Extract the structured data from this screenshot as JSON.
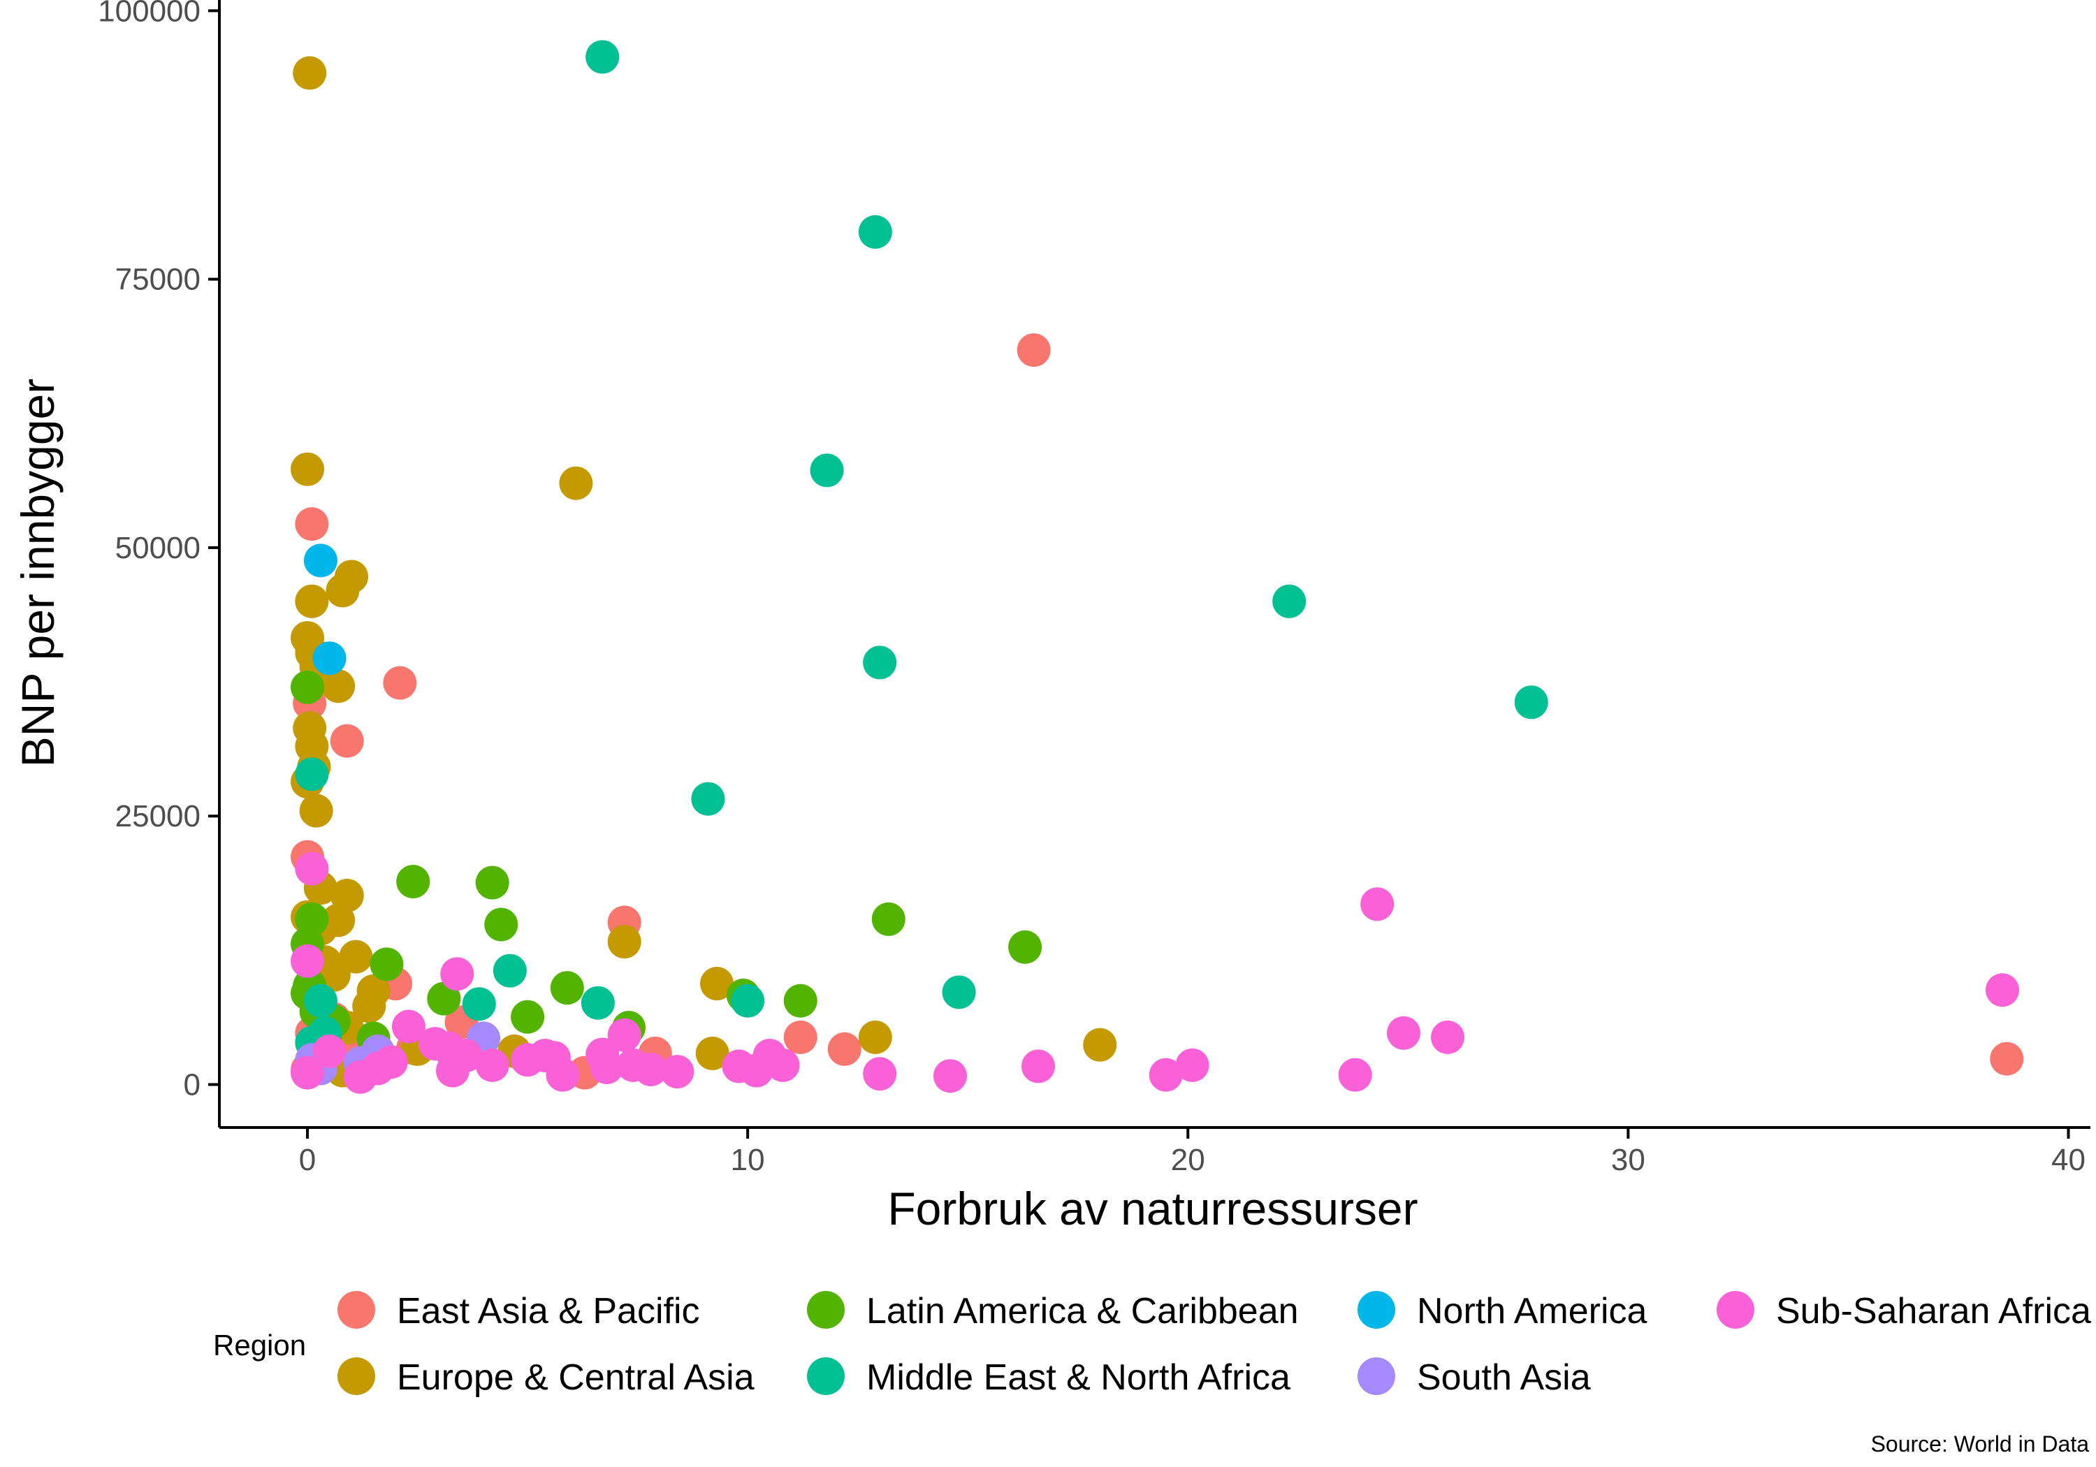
{
  "chart_data": {
    "type": "scatter",
    "xlabel": "Forbruk av naturressurser",
    "ylabel": "BNP per innbygger",
    "xlim": [
      -2,
      40.5
    ],
    "ylim": [
      -4000,
      101000
    ],
    "x_ticks": [
      0,
      10,
      20,
      30,
      40
    ],
    "y_ticks": [
      0,
      25000,
      50000,
      75000,
      100000
    ],
    "grid": false,
    "legend_title": "Region",
    "legend_position": "bottom",
    "caption": "Source: World in Data",
    "series": [
      {
        "name": "East Asia & Pacific",
        "color": "#F8766D",
        "points": [
          [
            16.5,
            68400
          ],
          [
            0.1,
            52200
          ],
          [
            2.1,
            37400
          ],
          [
            0.9,
            32000
          ],
          [
            0.05,
            35500
          ],
          [
            0.0,
            21200
          ],
          [
            7.2,
            15100
          ],
          [
            2.0,
            9400
          ],
          [
            3.5,
            5800
          ],
          [
            11.2,
            4400
          ],
          [
            12.2,
            3300
          ],
          [
            7.9,
            2900
          ],
          [
            6.3,
            1100
          ],
          [
            38.6,
            2400
          ],
          [
            0.5,
            3500
          ],
          [
            0.8,
            2200
          ],
          [
            1.0,
            4200
          ],
          [
            0.1,
            4800
          ],
          [
            0.3,
            2400
          ],
          [
            0.0,
            1400
          ],
          [
            1.5,
            2800
          ],
          [
            2.4,
            3400
          ],
          [
            0.6,
            6100
          ],
          [
            1.6,
            1800
          ]
        ]
      },
      {
        "name": "Europe & Central Asia",
        "color": "#C49A00",
        "points": [
          [
            0.05,
            94200
          ],
          [
            0.0,
            57300
          ],
          [
            6.1,
            56000
          ],
          [
            1.0,
            47300
          ],
          [
            0.8,
            46000
          ],
          [
            0.1,
            45000
          ],
          [
            0.0,
            41600
          ],
          [
            0.1,
            40200
          ],
          [
            0.2,
            38900
          ],
          [
            0.7,
            37100
          ],
          [
            0.05,
            33200
          ],
          [
            0.1,
            31500
          ],
          [
            0.15,
            29600
          ],
          [
            0.0,
            28200
          ],
          [
            0.2,
            25500
          ],
          [
            0.3,
            18300
          ],
          [
            0.9,
            17600
          ],
          [
            0.0,
            15600
          ],
          [
            0.7,
            15300
          ],
          [
            0.3,
            14500
          ],
          [
            7.2,
            13300
          ],
          [
            1.1,
            11900
          ],
          [
            0.4,
            11400
          ],
          [
            0.6,
            10200
          ],
          [
            9.3,
            9400
          ],
          [
            1.5,
            8700
          ],
          [
            1.4,
            7300
          ],
          [
            0.9,
            5300
          ],
          [
            18.0,
            3700
          ],
          [
            12.9,
            4400
          ],
          [
            9.2,
            2900
          ],
          [
            0.8,
            1300
          ],
          [
            2.5,
            3300
          ],
          [
            0.2,
            8300
          ],
          [
            4.7,
            3100
          ]
        ]
      },
      {
        "name": "Latin America & Caribbean",
        "color": "#53B400",
        "points": [
          [
            2.4,
            18900
          ],
          [
            4.2,
            18800
          ],
          [
            4.4,
            14900
          ],
          [
            13.2,
            15400
          ],
          [
            16.3,
            12800
          ],
          [
            0.1,
            15400
          ],
          [
            0.0,
            13100
          ],
          [
            1.8,
            11200
          ],
          [
            0.05,
            9200
          ],
          [
            0.0,
            8500
          ],
          [
            3.1,
            8000
          ],
          [
            5.9,
            9000
          ],
          [
            11.2,
            7800
          ],
          [
            9.9,
            8300
          ],
          [
            5.0,
            6300
          ],
          [
            7.3,
            5300
          ],
          [
            0.0,
            37000
          ],
          [
            0.4,
            4200
          ],
          [
            0.2,
            6800
          ],
          [
            1.5,
            4300
          ],
          [
            0.6,
            5900
          ]
        ]
      },
      {
        "name": "Middle East & North Africa",
        "color": "#00C094",
        "points": [
          [
            6.7,
            95700
          ],
          [
            12.9,
            79400
          ],
          [
            11.8,
            57200
          ],
          [
            22.3,
            45000
          ],
          [
            13.0,
            39300
          ],
          [
            27.8,
            35600
          ],
          [
            9.1,
            26600
          ],
          [
            0.1,
            28900
          ],
          [
            14.8,
            8600
          ],
          [
            4.6,
            10600
          ],
          [
            6.6,
            7600
          ],
          [
            3.9,
            7500
          ],
          [
            10.0,
            7800
          ],
          [
            0.3,
            7800
          ],
          [
            0.4,
            4800
          ],
          [
            0.1,
            3900
          ]
        ]
      },
      {
        "name": "North America",
        "color": "#00B6EB",
        "points": [
          [
            0.3,
            48800
          ],
          [
            0.5,
            39700
          ]
        ]
      },
      {
        "name": "South Asia",
        "color": "#A58AFF",
        "points": [
          [
            4.0,
            4300
          ],
          [
            0.2,
            1800
          ],
          [
            0.3,
            1500
          ],
          [
            0.1,
            2300
          ],
          [
            1.6,
            3100
          ],
          [
            1.2,
            2000
          ]
        ]
      },
      {
        "name": "Sub-Saharan Africa",
        "color": "#FB61D7",
        "points": [
          [
            24.3,
            16800
          ],
          [
            38.5,
            8800
          ],
          [
            0.1,
            20100
          ],
          [
            0.0,
            11500
          ],
          [
            3.4,
            10300
          ],
          [
            24.9,
            4800
          ],
          [
            25.9,
            4400
          ],
          [
            2.3,
            5400
          ],
          [
            3.2,
            3400
          ],
          [
            4.2,
            1800
          ],
          [
            5.0,
            2300
          ],
          [
            5.4,
            2700
          ],
          [
            5.6,
            2500
          ],
          [
            5.8,
            900
          ],
          [
            6.7,
            2800
          ],
          [
            6.8,
            1600
          ],
          [
            7.2,
            4600
          ],
          [
            7.4,
            1800
          ],
          [
            7.8,
            1400
          ],
          [
            8.4,
            1200
          ],
          [
            9.8,
            1700
          ],
          [
            10.2,
            1300
          ],
          [
            10.5,
            2700
          ],
          [
            10.8,
            1800
          ],
          [
            13.0,
            1000
          ],
          [
            14.6,
            800
          ],
          [
            16.6,
            1700
          ],
          [
            19.5,
            900
          ],
          [
            20.1,
            1800
          ],
          [
            23.8,
            900
          ],
          [
            1.2,
            700
          ],
          [
            1.6,
            1500
          ],
          [
            0.0,
            1100
          ],
          [
            3.3,
            1300
          ],
          [
            2.9,
            3800
          ],
          [
            3.6,
            2700
          ],
          [
            0.5,
            3100
          ],
          [
            1.9,
            2100
          ]
        ]
      }
    ]
  }
}
